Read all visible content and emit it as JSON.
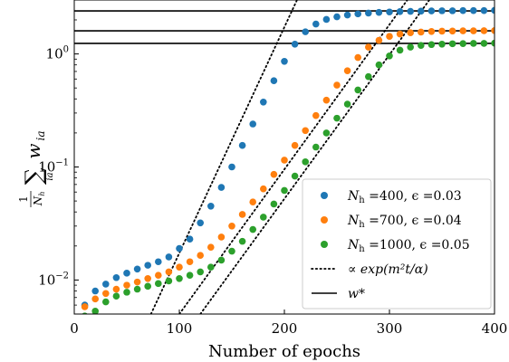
{
  "chart_data": {
    "type": "scatter",
    "xlabel": "Number of epochs",
    "ylabel_parts": {
      "frac_num": "1",
      "frac_den": "N",
      "frac_den_sub": "h",
      "sum": "∑",
      "sum_sub": "ia",
      "w": "w",
      "w_sub": "ia"
    },
    "xlim": [
      0,
      400
    ],
    "ylim": [
      0.005,
      3.0
    ],
    "yscale": "log",
    "x_ticks": [
      0,
      100,
      200,
      300,
      400
    ],
    "x_tick_labels": [
      "0",
      "100",
      "200",
      "300",
      "400"
    ],
    "y_ticks": [
      0.01,
      0.1,
      1
    ],
    "y_tick_labels": [
      {
        "base": "10",
        "exp": "−2"
      },
      {
        "base": "10",
        "exp": "−1"
      },
      {
        "base": "10",
        "exp": "0"
      }
    ],
    "grid": false,
    "legend_position": "lower-right",
    "series": [
      {
        "name": "N_h =400, ϵ =0.03",
        "color": "#1f77b4",
        "x": [
          10,
          20,
          30,
          40,
          50,
          60,
          70,
          80,
          90,
          100,
          110,
          120,
          130,
          140,
          150,
          160,
          170,
          180,
          190,
          200,
          210,
          220,
          230,
          240,
          250,
          260,
          270,
          280,
          290,
          300,
          310,
          320,
          330,
          340,
          350,
          360,
          370,
          380,
          390,
          400
        ],
        "y": [
          0.006,
          0.008,
          0.0092,
          0.0105,
          0.0115,
          0.0125,
          0.0135,
          0.0145,
          0.016,
          0.019,
          0.023,
          0.032,
          0.045,
          0.066,
          0.1,
          0.155,
          0.24,
          0.375,
          0.58,
          0.86,
          1.22,
          1.57,
          1.84,
          2.02,
          2.13,
          2.21,
          2.26,
          2.3,
          2.33,
          2.35,
          2.37,
          2.38,
          2.39,
          2.4,
          2.41,
          2.41,
          2.42,
          2.42,
          2.42,
          2.43
        ]
      },
      {
        "name": "N_h =700, ϵ =0.04",
        "color": "#ff7f0e",
        "x": [
          10,
          20,
          30,
          40,
          50,
          60,
          70,
          80,
          90,
          100,
          110,
          120,
          130,
          140,
          150,
          160,
          170,
          180,
          190,
          200,
          210,
          220,
          230,
          240,
          250,
          260,
          270,
          280,
          290,
          300,
          310,
          320,
          330,
          340,
          350,
          360,
          370,
          380,
          390,
          400
        ],
        "y": [
          0.0058,
          0.0068,
          0.0076,
          0.0083,
          0.009,
          0.0096,
          0.0103,
          0.011,
          0.0118,
          0.013,
          0.0145,
          0.0165,
          0.0195,
          0.024,
          0.03,
          0.038,
          0.049,
          0.064,
          0.086,
          0.115,
          0.155,
          0.21,
          0.285,
          0.39,
          0.53,
          0.71,
          0.93,
          1.15,
          1.32,
          1.43,
          1.5,
          1.54,
          1.56,
          1.58,
          1.59,
          1.595,
          1.6,
          1.6,
          1.605,
          1.61
        ]
      },
      {
        "name": "N_h =1000, ϵ =0.05",
        "color": "#2ca02c",
        "x": [
          10,
          20,
          30,
          40,
          50,
          60,
          70,
          80,
          90,
          100,
          110,
          120,
          130,
          140,
          150,
          160,
          170,
          180,
          190,
          200,
          210,
          220,
          230,
          240,
          250,
          260,
          270,
          280,
          290,
          300,
          310,
          320,
          330,
          340,
          350,
          360,
          370,
          380,
          390,
          400
        ],
        "y": [
          0.0048,
          0.0053,
          0.0064,
          0.0072,
          0.0078,
          0.0083,
          0.0088,
          0.0093,
          0.0098,
          0.0103,
          0.011,
          0.0118,
          0.013,
          0.015,
          0.018,
          0.022,
          0.028,
          0.036,
          0.047,
          0.062,
          0.083,
          0.111,
          0.15,
          0.2,
          0.27,
          0.36,
          0.48,
          0.63,
          0.8,
          0.96,
          1.08,
          1.15,
          1.19,
          1.21,
          1.22,
          1.23,
          1.235,
          1.24,
          1.24,
          1.245
        ]
      }
    ],
    "fit_lines": [
      {
        "style": "dotted",
        "x": [
          73,
          212
        ],
        "y": [
          0.005,
          3.0
        ]
      },
      {
        "style": "dotted",
        "x": [
          100,
          317
        ],
        "y": [
          0.005,
          3.0
        ]
      },
      {
        "style": "dotted",
        "x": [
          120,
          338
        ],
        "y": [
          0.005,
          3.0
        ]
      }
    ],
    "hlines": [
      {
        "style": "solid",
        "y": 2.4
      },
      {
        "style": "solid",
        "y": 1.6
      },
      {
        "style": "solid",
        "y": 1.24
      }
    ],
    "legend": [
      {
        "kind": "marker",
        "color": "#1f77b4",
        "text_main": "N",
        "text_sub": "h",
        "text_rest": " =400, ϵ =0.03"
      },
      {
        "kind": "marker",
        "color": "#ff7f0e",
        "text_main": "N",
        "text_sub": "h",
        "text_rest": " =700, ϵ =0.04"
      },
      {
        "kind": "marker",
        "color": "#2ca02c",
        "text_main": "N",
        "text_sub": "h",
        "text_rest": " =1000, ϵ =0.05"
      },
      {
        "kind": "dotted",
        "color": "#000000",
        "text_main": "∝ exp(m²t/α)",
        "text_sub": "",
        "text_rest": ""
      },
      {
        "kind": "solid",
        "color": "#000000",
        "text_main": "w*",
        "text_sub": "",
        "text_rest": ""
      }
    ]
  }
}
